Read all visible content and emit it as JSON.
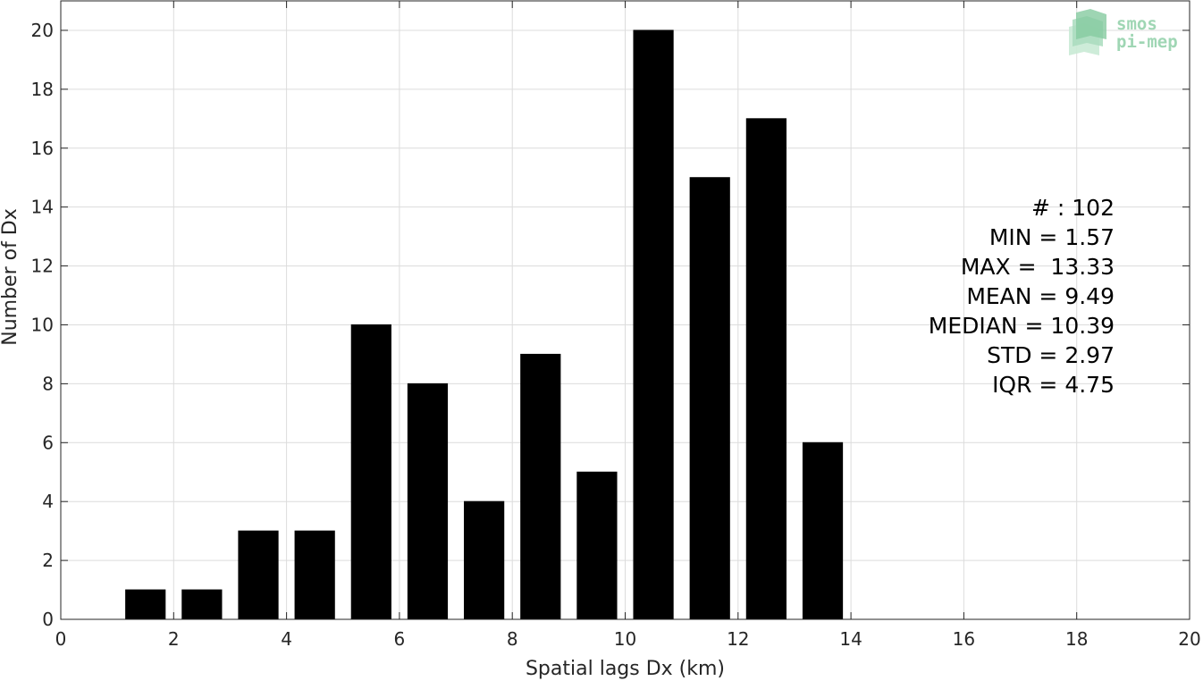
{
  "chart_data": {
    "type": "bar",
    "xlabel": "Spatial lags Dx (km)",
    "ylabel": "Number of Dx",
    "xlim": [
      0,
      20
    ],
    "ylim": [
      0,
      21
    ],
    "xticks": [
      0,
      2,
      4,
      6,
      8,
      10,
      12,
      14,
      16,
      18,
      20
    ],
    "yticks": [
      0,
      2,
      4,
      6,
      8,
      10,
      12,
      14,
      16,
      18,
      20
    ],
    "grid": true,
    "bar_color": "#000000",
    "bin_width": 1,
    "bar_width_fraction": 0.7,
    "bins": [
      {
        "x": 1.5,
        "value": 1
      },
      {
        "x": 2.5,
        "value": 1
      },
      {
        "x": 3.5,
        "value": 3
      },
      {
        "x": 4.5,
        "value": 3
      },
      {
        "x": 5.5,
        "value": 10
      },
      {
        "x": 6.5,
        "value": 8
      },
      {
        "x": 7.5,
        "value": 4
      },
      {
        "x": 8.5,
        "value": 9
      },
      {
        "x": 9.5,
        "value": 5
      },
      {
        "x": 10.5,
        "value": 20
      },
      {
        "x": 11.5,
        "value": 15
      },
      {
        "x": 12.5,
        "value": 17
      },
      {
        "x": 13.5,
        "value": 6
      }
    ],
    "annotations": [
      "# : 102",
      "MIN = 1.57",
      "MAX =  13.33",
      "MEAN = 9.49",
      "MEDIAN = 10.39",
      "STD = 2.97",
      "IQR = 4.75"
    ]
  },
  "logo": {
    "line1": "smos",
    "line2": "pi-mep",
    "color": "#9fd6b4"
  }
}
